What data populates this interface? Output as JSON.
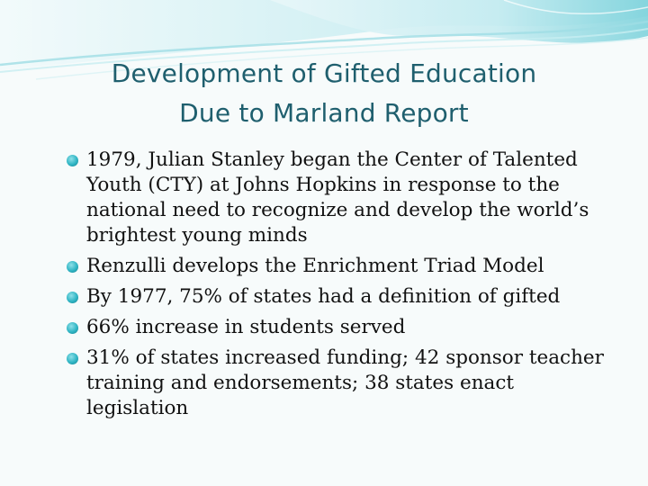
{
  "slide": {
    "title_lines": [
      "Development of Gifted Education",
      "Due to Marland Report"
    ],
    "bullets": [
      "1979, Julian Stanley began the Center of Talented Youth (CTY) at Johns Hopkins in response to the national need to recognize and develop the world’s brightest young minds",
      "Renzulli develops the Enrichment Triad Model",
      "By 1977, 75% of states had a definition of gifted",
      "66% increase in students served",
      "31% of states increased funding; 42 sponsor teacher training and endorsements; 38 states enact legislation"
    ]
  },
  "colors": {
    "title": "#1f5f6e",
    "bullet_marker": "#2fb5c4",
    "wave_light": "#bfe9ee",
    "wave_mid": "#7fd3dc",
    "background": "#f7fbfb"
  }
}
